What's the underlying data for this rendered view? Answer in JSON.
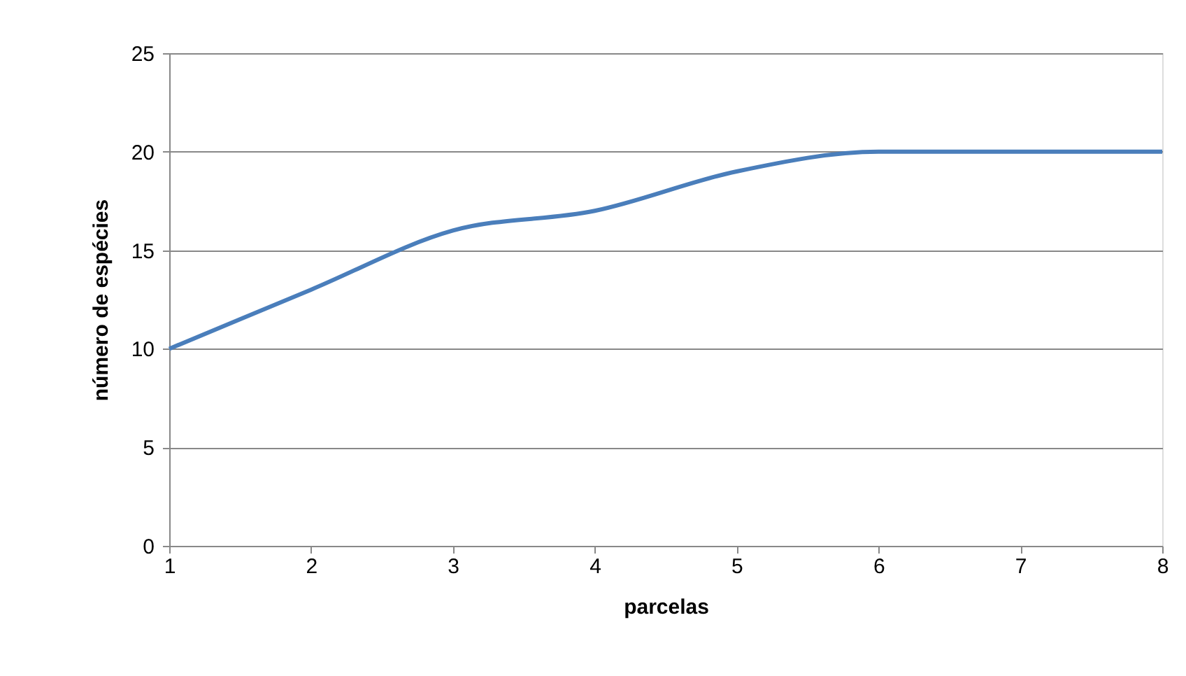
{
  "chart_data": {
    "type": "line",
    "xlabel": "parcelas",
    "ylabel": "número de espécies",
    "x": [
      1,
      2,
      3,
      4,
      5,
      6,
      7,
      8
    ],
    "series": [
      {
        "color": "#4a7ebb",
        "values": [
          10,
          13,
          16,
          17,
          19,
          20,
          20,
          20
        ]
      }
    ],
    "xlim": [
      1,
      8
    ],
    "xticks": [
      1,
      2,
      3,
      4,
      5,
      6,
      7,
      8
    ],
    "ylim": [
      0,
      25
    ],
    "yticks": [
      0,
      5,
      10,
      15,
      20,
      25
    ],
    "grid": "y",
    "marker": "none",
    "line_style": "solid"
  }
}
